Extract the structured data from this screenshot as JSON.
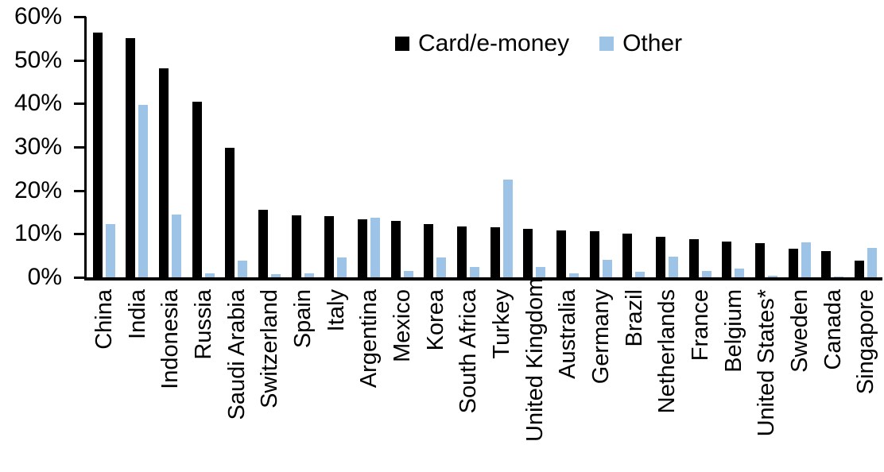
{
  "chart_data": {
    "type": "bar",
    "categories": [
      "China",
      "India",
      "Indonesia",
      "Russia",
      "Saudi Arabia",
      "Switzerland",
      "Spain",
      "Italy",
      "Argentina",
      "Mexico",
      "Korea",
      "South Africa",
      "Turkey",
      "United Kingdom",
      "Australia",
      "Germany",
      "Brazil",
      "Netherlands",
      "France",
      "Belgium",
      "United States*",
      "Sweden",
      "Canada",
      "Singapore"
    ],
    "series": [
      {
        "name": "Card/e-money",
        "color": "#000000",
        "values": [
          56.3,
          55.0,
          48.2,
          40.4,
          29.8,
          15.6,
          14.2,
          14.1,
          13.3,
          12.9,
          12.2,
          11.8,
          11.6,
          11.1,
          10.8,
          10.6,
          10.0,
          9.3,
          8.7,
          8.2,
          7.9,
          6.5,
          6.0,
          3.8
        ]
      },
      {
        "name": "Other",
        "color": "#9DC3E6",
        "values": [
          12.3,
          39.7,
          14.5,
          1.0,
          3.8,
          0.7,
          0.9,
          4.6,
          13.8,
          1.4,
          4.6,
          2.3,
          22.5,
          2.4,
          1.0,
          4.0,
          1.2,
          4.8,
          1.5,
          2.0,
          0.3,
          8.0,
          0.1,
          6.7
        ]
      }
    ],
    "title": "",
    "xlabel": "",
    "ylabel": "",
    "ylim": [
      0,
      60
    ],
    "yticks": [
      "0%",
      "10%",
      "20%",
      "30%",
      "40%",
      "50%",
      "60%"
    ],
    "grid": false,
    "legend_position": "top-center"
  },
  "colors": {
    "card": "#000000",
    "other": "#9DC3E6",
    "axis": "#000000",
    "background": "#FFFFFF"
  }
}
